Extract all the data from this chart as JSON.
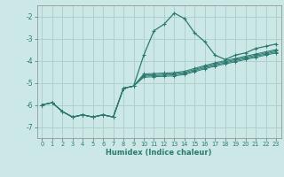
{
  "xlabel": "Humidex (Indice chaleur)",
  "background_color": "#cce8e6",
  "grid_color": "#aaccca",
  "line_color": "#2a7a6f",
  "xlim": [
    -0.5,
    23.5
  ],
  "ylim": [
    -7.5,
    -1.5
  ],
  "yticks": [
    -7,
    -6,
    -5,
    -4,
    -3,
    -2
  ],
  "xticks": [
    0,
    1,
    2,
    3,
    4,
    5,
    6,
    7,
    8,
    9,
    10,
    11,
    12,
    13,
    14,
    15,
    16,
    17,
    18,
    19,
    20,
    21,
    22,
    23
  ],
  "line_main": [
    -6.0,
    -5.9,
    -6.3,
    -6.55,
    -6.45,
    -6.55,
    -6.45,
    -6.55,
    -5.25,
    -5.15,
    -3.75,
    -2.65,
    -2.35,
    -1.85,
    -2.1,
    -2.75,
    -3.15,
    -3.75,
    -3.95,
    -3.75,
    -3.65,
    -3.45,
    -3.35,
    -3.25
  ],
  "lines_flat": [
    [
      -6.0,
      -5.9,
      -6.3,
      -6.55,
      -6.45,
      -6.55,
      -6.45,
      -6.55,
      -5.25,
      -5.15,
      -4.6,
      -4.58,
      -4.56,
      -4.54,
      -4.48,
      -4.35,
      -4.22,
      -4.1,
      -4.0,
      -3.9,
      -3.8,
      -3.7,
      -3.6,
      -3.5
    ],
    [
      -6.0,
      -5.9,
      -6.3,
      -6.55,
      -6.45,
      -6.55,
      -6.45,
      -6.55,
      -5.25,
      -5.15,
      -4.65,
      -4.63,
      -4.61,
      -4.59,
      -4.53,
      -4.4,
      -4.27,
      -4.15,
      -4.05,
      -3.95,
      -3.85,
      -3.75,
      -3.65,
      -3.55
    ],
    [
      -6.0,
      -5.9,
      -6.3,
      -6.55,
      -6.45,
      -6.55,
      -6.45,
      -6.55,
      -5.25,
      -5.15,
      -4.7,
      -4.68,
      -4.66,
      -4.64,
      -4.58,
      -4.45,
      -4.32,
      -4.2,
      -4.1,
      -4.0,
      -3.9,
      -3.8,
      -3.7,
      -3.6
    ],
    [
      -6.0,
      -5.9,
      -6.3,
      -6.55,
      -6.45,
      -6.55,
      -6.45,
      -6.55,
      -5.25,
      -5.15,
      -4.75,
      -4.73,
      -4.71,
      -4.69,
      -4.63,
      -4.5,
      -4.37,
      -4.25,
      -4.15,
      -4.05,
      -3.95,
      -3.85,
      -3.75,
      -3.65
    ]
  ]
}
